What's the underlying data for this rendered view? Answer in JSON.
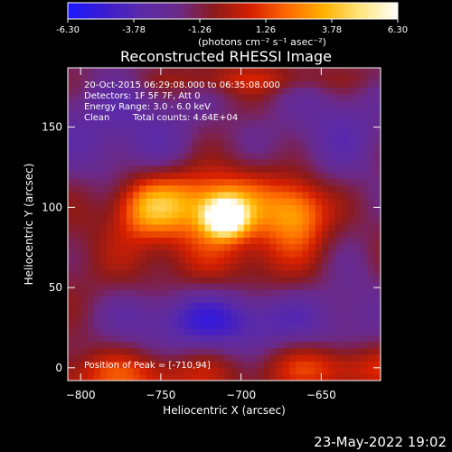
{
  "colorbar": {
    "ticks": [
      "-6.30",
      "-3.78",
      "-1.26",
      "1.26",
      "3.78",
      "6.30"
    ],
    "tick_values": [
      -6.3,
      -3.78,
      -1.26,
      1.26,
      3.78,
      6.3
    ],
    "range": [
      -6.3,
      6.3
    ],
    "unit_label": "(photons cm⁻² s⁻¹ asec⁻²)",
    "colors": [
      "#1a1aff",
      "#3b1bd0",
      "#5a2aa8",
      "#6a2a8a",
      "#8c1a1a",
      "#d62000",
      "#ff6a00",
      "#ffb200",
      "#ffe680",
      "#ffffff"
    ]
  },
  "chart_data": {
    "type": "heatmap",
    "title": "Reconstructed RHESSI Image",
    "xlabel": "Heliocentric X (arcsec)",
    "ylabel": "Heliocentric Y (arcsec)",
    "xlim": [
      -808,
      -613
    ],
    "ylim": [
      -8,
      187
    ],
    "xticks": [
      -800,
      -750,
      -700,
      -650
    ],
    "yticks": [
      0,
      50,
      100,
      150
    ],
    "xtick_labels": [
      "−800",
      "−750",
      "−700",
      "−650"
    ],
    "ytick_labels": [
      "0",
      "50",
      "100",
      "150"
    ],
    "peak": [
      -710,
      94
    ],
    "annotations": {
      "time_range": "20-Oct-2015 06:29:08.000 to 06:35:08.000",
      "detectors": "Detectors: 1F 5F 7F, Att 0",
      "energy": "Energy Range: 3.0 - 6.0 keV",
      "clean_label": "Clean",
      "total_counts": "Total counts: 4.64E+04",
      "peak_position": "Position of Peak = [-710,94]"
    }
  },
  "footer": {
    "date": "23-May-2022 19:02"
  }
}
